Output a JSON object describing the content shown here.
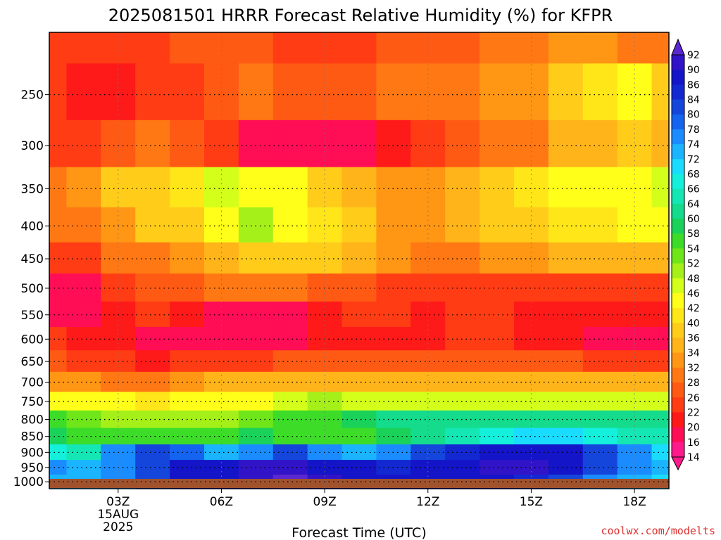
{
  "chart_data": {
    "type": "heatmap",
    "title": "2025081501 HRRR Forecast Relative Humidity (%) for KFPR",
    "xlabel": "Forecast Time (UTC)",
    "ylabel": "",
    "x_hours": [
      1,
      2,
      3,
      4,
      5,
      6,
      7,
      8,
      9,
      10,
      11,
      12,
      13,
      14,
      15,
      16,
      17,
      18,
      19
    ],
    "x_ticks": [
      {
        "hour": 3,
        "label": "03Z",
        "sub1": "15AUG",
        "sub2": "2025"
      },
      {
        "hour": 6,
        "label": "06Z"
      },
      {
        "hour": 9,
        "label": "09Z"
      },
      {
        "hour": 12,
        "label": "12Z"
      },
      {
        "hour": 15,
        "label": "15Z"
      },
      {
        "hour": 18,
        "label": "18Z"
      }
    ],
    "xlim": [
      1,
      19
    ],
    "y_levels": [
      200,
      250,
      300,
      350,
      400,
      450,
      500,
      550,
      600,
      650,
      700,
      750,
      800,
      850,
      900,
      950,
      1000
    ],
    "y_tick_labels": [
      "250",
      "300",
      "350",
      "400",
      "450",
      "500",
      "550",
      "600",
      "650",
      "700",
      "750",
      "800",
      "850",
      "900",
      "950",
      "1000"
    ],
    "y_ticks": [
      250,
      300,
      350,
      400,
      450,
      500,
      550,
      600,
      650,
      700,
      750,
      800,
      850,
      900,
      950,
      1000
    ],
    "ylim": [
      200,
      1025
    ],
    "y_scale": "log-pressure",
    "grid": true,
    "colorbar_labels": [
      "92",
      "90",
      "86",
      "84",
      "80",
      "78",
      "74",
      "72",
      "68",
      "66",
      "64",
      "60",
      "58",
      "54",
      "52",
      "48",
      "46",
      "42",
      "40",
      "36",
      "34",
      "32",
      "28",
      "26",
      "22",
      "20",
      "16",
      "14"
    ],
    "colorbar_levels": [
      14,
      16,
      20,
      22,
      26,
      28,
      32,
      34,
      36,
      40,
      42,
      46,
      48,
      52,
      54,
      58,
      60,
      64,
      66,
      68,
      72,
      74,
      78,
      80,
      84,
      86,
      90,
      92
    ],
    "colorbar_colors": [
      "#ff1a8c",
      "#ff0d55",
      "#ff1a1a",
      "#ff3c14",
      "#ff5a14",
      "#ff7814",
      "#ff9614",
      "#ffb41a",
      "#ffcc1a",
      "#ffe619",
      "#ffff1a",
      "#d4ff1a",
      "#a6f01a",
      "#6ee61a",
      "#3cdc28",
      "#1ad25a",
      "#14dc8c",
      "#14e6b4",
      "#14f0dc",
      "#1adcff",
      "#1ab4ff",
      "#1a8cff",
      "#1464f0",
      "#1446dc",
      "#1428d2",
      "#1414c8",
      "#3214c8",
      "#5a28d2"
    ],
    "values": [
      [
        24,
        22,
        22,
        24,
        26,
        27,
        26,
        25,
        25,
        24,
        26,
        27,
        26,
        28,
        30,
        32,
        32,
        30,
        30
      ],
      [
        22,
        21,
        21,
        22,
        25,
        27,
        28,
        27,
        27,
        27,
        29,
        30,
        31,
        32,
        33,
        36,
        40,
        42,
        38
      ],
      [
        23,
        24,
        26,
        28,
        26,
        22,
        19,
        17,
        17,
        17,
        21,
        24,
        27,
        29,
        31,
        34,
        35,
        36,
        35
      ],
      [
        30,
        33,
        36,
        37,
        40,
        46,
        45,
        42,
        38,
        34,
        32,
        33,
        35,
        38,
        40,
        43,
        44,
        45,
        47
      ],
      [
        28,
        30,
        33,
        36,
        39,
        45,
        49,
        45,
        41,
        36,
        33,
        33,
        34,
        36,
        38,
        40,
        41,
        43,
        44
      ],
      [
        22,
        24,
        28,
        30,
        32,
        35,
        37,
        38,
        37,
        34,
        32,
        31,
        31,
        32,
        33,
        34,
        35,
        35,
        34
      ],
      [
        17,
        19,
        23,
        26,
        27,
        28,
        28,
        28,
        27,
        26,
        25,
        24,
        24,
        25,
        25,
        25,
        25,
        24,
        24
      ],
      [
        19,
        19,
        20,
        22,
        21,
        19,
        18,
        18,
        21,
        22,
        22,
        21,
        22,
        22,
        21,
        21,
        20,
        20,
        20
      ],
      [
        22,
        21,
        20,
        18,
        17,
        16,
        16,
        16,
        20,
        21,
        21,
        21,
        22,
        22,
        21,
        20,
        18,
        17,
        17
      ],
      [
        26,
        25,
        23,
        20,
        22,
        24,
        25,
        26,
        26,
        26,
        27,
        27,
        27,
        27,
        27,
        27,
        25,
        23,
        22
      ],
      [
        33,
        32,
        31,
        30,
        32,
        34,
        34,
        34,
        34,
        34,
        34,
        34,
        34,
        35,
        35,
        35,
        34,
        34,
        34
      ],
      [
        44,
        44,
        42,
        40,
        42,
        44,
        45,
        47,
        48,
        47,
        46,
        46,
        46,
        46,
        47,
        46,
        46,
        46,
        46
      ],
      [
        54,
        52,
        50,
        48,
        49,
        50,
        52,
        54,
        56,
        58,
        60,
        62,
        63,
        62,
        62,
        63,
        63,
        63,
        63
      ],
      [
        58,
        56,
        56,
        55,
        56,
        57,
        58,
        57,
        54,
        55,
        58,
        62,
        64,
        66,
        70,
        70,
        66,
        64,
        64
      ],
      [
        66,
        64,
        74,
        82,
        78,
        72,
        76,
        80,
        76,
        72,
        76,
        80,
        84,
        86,
        88,
        88,
        80,
        74,
        70
      ],
      [
        74,
        72,
        76,
        80,
        86,
        88,
        90,
        90,
        88,
        86,
        84,
        86,
        88,
        90,
        90,
        88,
        80,
        74,
        72
      ],
      [
        72,
        72,
        76,
        82,
        86,
        88,
        90,
        92,
        90,
        88,
        86,
        86,
        86,
        86,
        84,
        82,
        76,
        72,
        70
      ]
    ]
  }
}
